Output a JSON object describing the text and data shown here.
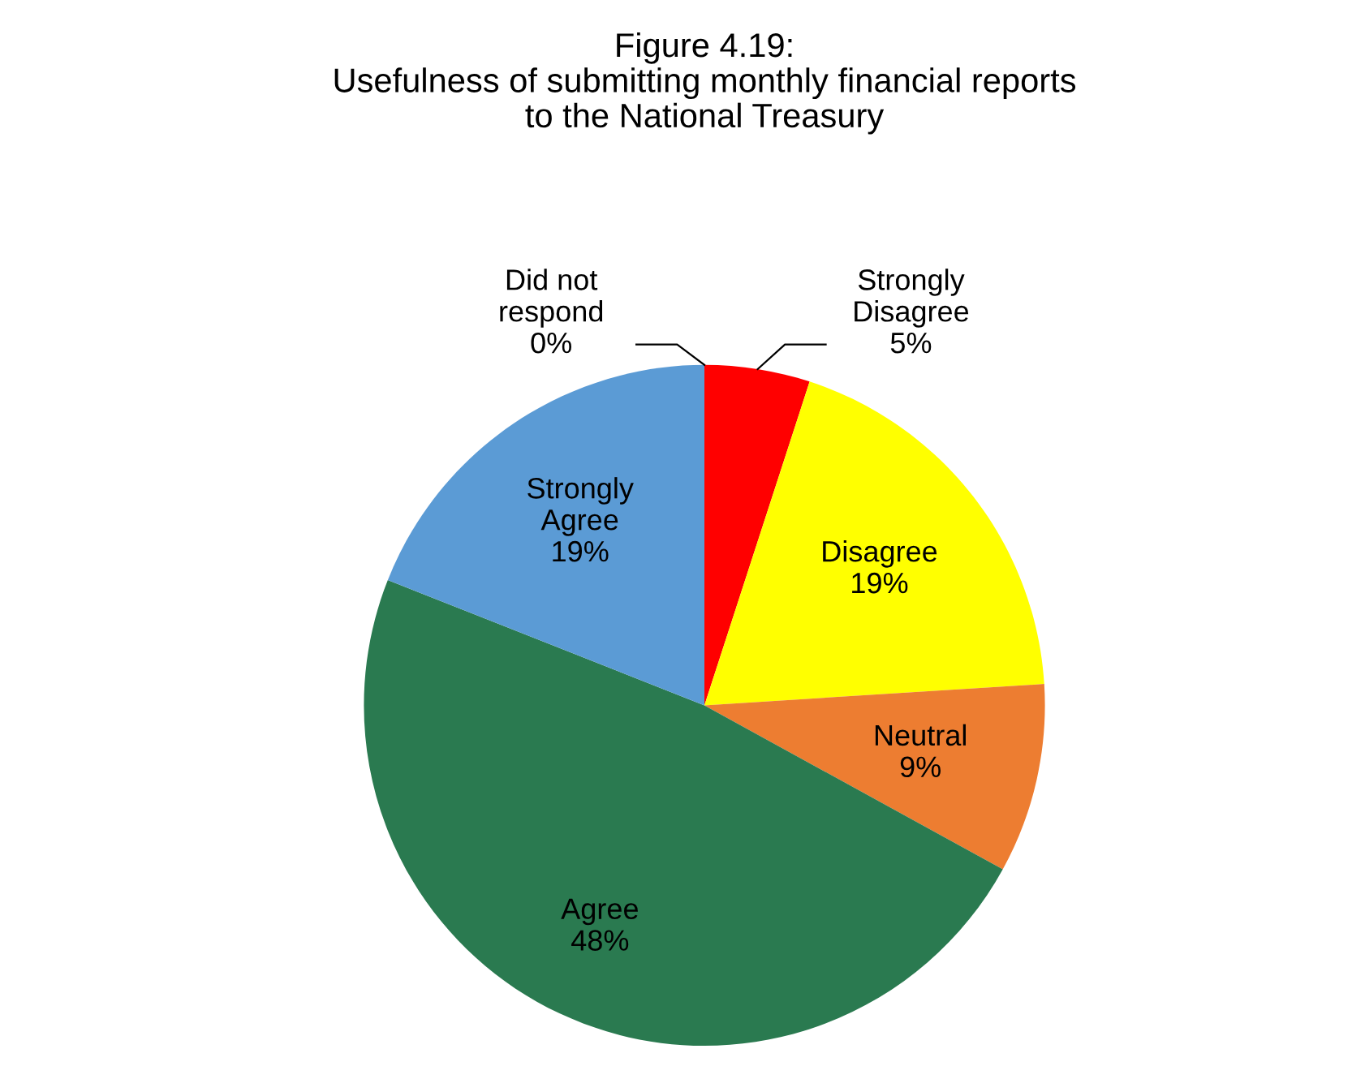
{
  "chart_data": {
    "type": "pie",
    "title": "Figure 4.19:\nUsefulness of submitting monthly financial reports\nto the National Treasury",
    "categories": [
      "Strongly\nDisagree",
      "Disagree",
      "Neutral",
      "Agree",
      "Strongly\nAgree",
      "Did not\nrespond"
    ],
    "values": [
      5,
      19,
      9,
      48,
      19,
      0
    ],
    "colors": [
      "#ff0000",
      "#ffff00",
      "#ed7d31",
      "#2a7a50",
      "#5b9bd5",
      "#a5a5a5"
    ],
    "value_labels": [
      "5%",
      "19%",
      "9%",
      "48%",
      "19%",
      "0%"
    ],
    "legend": false
  }
}
